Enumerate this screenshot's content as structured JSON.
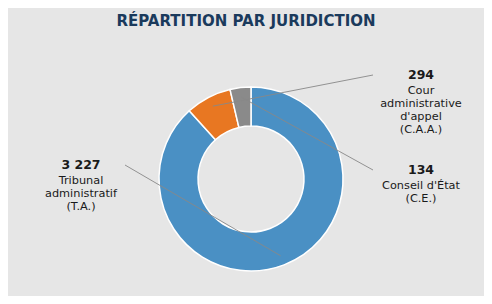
{
  "chart_data": {
    "type": "donut",
    "title": "RÉPARTITION PAR JURIDICTION",
    "categories": [
      "Tribunal\nadministratif\n(T.A.)",
      "Cour\nadministrative\nd'appel\n(C.A.A.)",
      "Conseil d'État\n(C.E.)"
    ],
    "values": [
      3227,
      294,
      134
    ],
    "value_labels": [
      "3 227",
      "294",
      "134"
    ],
    "colors": [
      "#4A90C4",
      "#E87722",
      "#8A8A8A"
    ],
    "data_labels": true
  }
}
